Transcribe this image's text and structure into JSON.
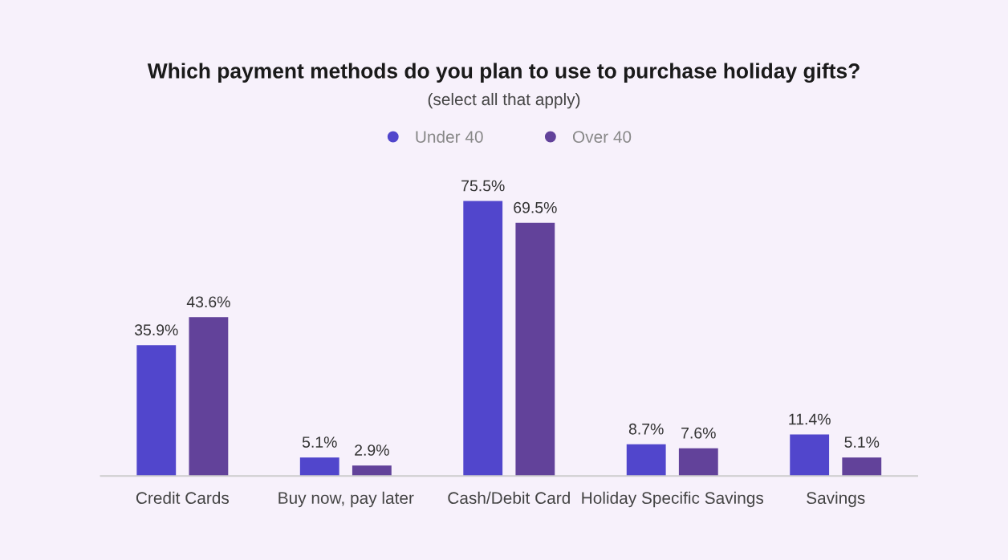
{
  "chart_data": {
    "type": "bar",
    "title": "Which payment methods do you plan to use to purchase holiday gifts?",
    "subtitle": "(select all that apply)",
    "categories": [
      "Credit Cards",
      "Buy now, pay later",
      "Cash/Debit Card",
      "Holiday Specific Savings",
      "Savings"
    ],
    "series": [
      {
        "name": "Under 40",
        "color": "#5146cc",
        "values": [
          35.9,
          5.1,
          75.5,
          8.7,
          11.4
        ],
        "value_labels": [
          "35.9%",
          "5.1%",
          "75.5%",
          "8.7%",
          "11.4%"
        ]
      },
      {
        "name": "Over 40",
        "color": "#62429a",
        "values": [
          43.6,
          2.9,
          69.5,
          7.6,
          5.1
        ],
        "value_labels": [
          "43.6%",
          "2.9%",
          "69.5%",
          "7.6%",
          "5.1%"
        ]
      }
    ],
    "legend": "top",
    "grid": false,
    "tick_labels": "x"
  }
}
